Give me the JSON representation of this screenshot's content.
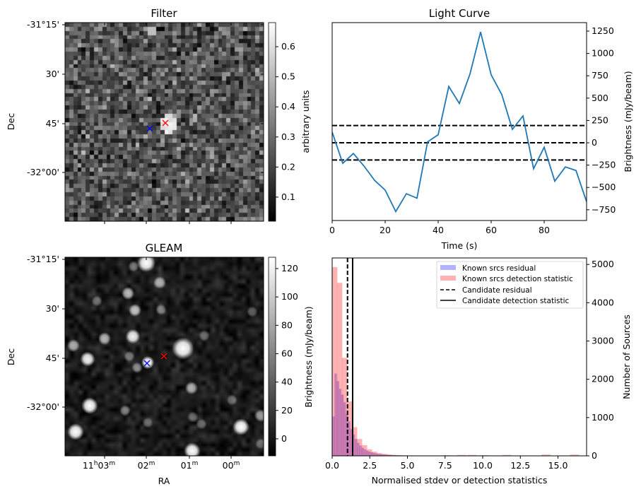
{
  "filter_panel": {
    "title": "Filter",
    "ylabel": "Dec",
    "dec_ticks": [
      "-31°15'",
      "30'",
      "45'",
      "-32°00'"
    ],
    "colorbar": {
      "label": "arbitrary units",
      "ticks": [
        "0.1",
        "0.2",
        "0.3",
        "0.4",
        "0.5",
        "0.6"
      ],
      "tick_values": [
        0.1,
        0.2,
        0.3,
        0.4,
        0.5,
        0.6
      ],
      "range": [
        0.02,
        0.68
      ]
    },
    "markers": [
      {
        "name": "candidate",
        "color": "#ff0000"
      },
      {
        "name": "known-source",
        "color": "#0000ff"
      }
    ]
  },
  "gleam_panel": {
    "title": "GLEAM",
    "ylabel": "Dec",
    "xlabel": "RA",
    "dec_ticks": [
      "-31°15'",
      "30'",
      "45'",
      "-32°00'"
    ],
    "ra_ticks": [
      {
        "a": "11",
        "as": "h",
        "b": "03",
        "bs": "m"
      },
      {
        "a": "",
        "as": "",
        "b": "02",
        "bs": "m"
      },
      {
        "a": "",
        "as": "",
        "b": "01",
        "bs": "m"
      },
      {
        "a": "",
        "as": "",
        "b": "00",
        "bs": "m"
      }
    ],
    "colorbar": {
      "label": "Brightness (mJy/beam)",
      "ticks": [
        "0",
        "20",
        "40",
        "60",
        "80",
        "100",
        "120"
      ],
      "tick_values": [
        0,
        20,
        40,
        60,
        80,
        100,
        120
      ],
      "range": [
        -12,
        128
      ]
    },
    "markers": [
      {
        "name": "candidate",
        "color": "#ff0000"
      },
      {
        "name": "known-source",
        "color": "#0000ff"
      }
    ]
  },
  "chart_data": [
    {
      "type": "line",
      "title": "Light Curve",
      "xlabel": "Time (s)",
      "ylabel": "Brightness (mJy/beam)",
      "xlim": [
        0,
        96
      ],
      "ylim": [
        -870,
        1345
      ],
      "xticks": [
        0,
        20,
        40,
        60,
        80
      ],
      "xtick_labels": [
        "0",
        "20",
        "40",
        "60",
        "80"
      ],
      "yticks": [
        -750,
        -500,
        -250,
        0,
        250,
        500,
        750,
        1000,
        1250
      ],
      "ytick_labels": [
        "−750",
        "−500",
        "−250",
        "0",
        "250",
        "500",
        "750",
        "1000",
        "1250"
      ],
      "series": [
        {
          "name": "light curve",
          "color": "#1f77b4",
          "x": [
            0,
            4,
            8,
            12,
            16,
            20,
            24,
            28,
            32,
            36,
            40,
            44,
            48,
            52,
            56,
            60,
            64,
            68,
            72,
            76,
            80,
            84,
            88,
            92,
            96
          ],
          "y": [
            120,
            -230,
            -120,
            -260,
            -420,
            -530,
            -770,
            -570,
            -620,
            10,
            90,
            630,
            440,
            770,
            1240,
            760,
            540,
            150,
            300,
            -290,
            -50,
            -430,
            -270,
            -310,
            -660
          ]
        }
      ],
      "hlines": [
        {
          "y": 193,
          "style": "dashed"
        },
        {
          "y": 0,
          "style": "dashed"
        },
        {
          "y": -193,
          "style": "dashed"
        }
      ]
    },
    {
      "type": "bar",
      "title": "",
      "xlabel": "Normalised stdev or detection statistics",
      "ylabel": "Number of Sources",
      "xlim": [
        0,
        16.9
      ],
      "ylim": [
        0,
        5170
      ],
      "xticks": [
        0,
        2.5,
        5,
        7.5,
        10,
        12.5,
        15
      ],
      "xtick_labels": [
        "0.0",
        "2.5",
        "5.0",
        "7.5",
        "10.0",
        "12.5",
        "15.0"
      ],
      "yticks": [
        0,
        1000,
        2000,
        3000,
        4000,
        5000
      ],
      "ytick_labels": [
        "0",
        "1000",
        "2000",
        "3000",
        "4000",
        "5000"
      ],
      "legend_position": "top-right",
      "series": [
        {
          "name": "Known srcs residual",
          "color": "#0000ff",
          "alpha": 0.3,
          "bin_start": 0,
          "bin_width": 0.15,
          "values": [
            1030,
            2150,
            1950,
            1750,
            1600,
            1400,
            1100,
            900,
            700,
            560,
            440,
            340,
            270,
            210,
            170,
            135,
            110,
            90,
            75,
            62,
            52,
            44,
            38,
            32,
            28,
            24,
            20,
            18,
            16,
            14,
            12,
            10,
            9,
            8,
            7,
            6,
            6,
            5,
            5,
            4,
            4,
            4,
            3,
            3,
            3,
            2,
            2,
            2,
            2,
            2
          ]
        },
        {
          "name": "Known srcs detection statistic",
          "color": "#ff0000",
          "alpha": 0.3,
          "bin_start": 0,
          "bin_width": 0.33,
          "values": [
            4930,
            4520,
            2560,
            1420,
            750,
            440,
            280,
            170,
            110,
            70,
            50,
            35,
            25,
            18,
            14,
            10,
            8,
            6,
            5,
            5,
            4,
            4,
            3,
            3,
            3,
            2,
            2,
            2,
            2,
            2,
            2,
            2,
            2,
            2,
            2,
            2,
            2,
            2,
            2,
            2,
            2,
            2,
            2,
            2,
            2,
            2,
            2,
            2,
            2,
            2
          ]
        }
      ],
      "vlines": [
        {
          "name": "Candidate residual",
          "x": 1.02,
          "style": "dashed",
          "color": "#000000"
        },
        {
          "name": "Candidate detection statistic",
          "x": 1.36,
          "style": "solid",
          "color": "#000000"
        }
      ]
    }
  ]
}
